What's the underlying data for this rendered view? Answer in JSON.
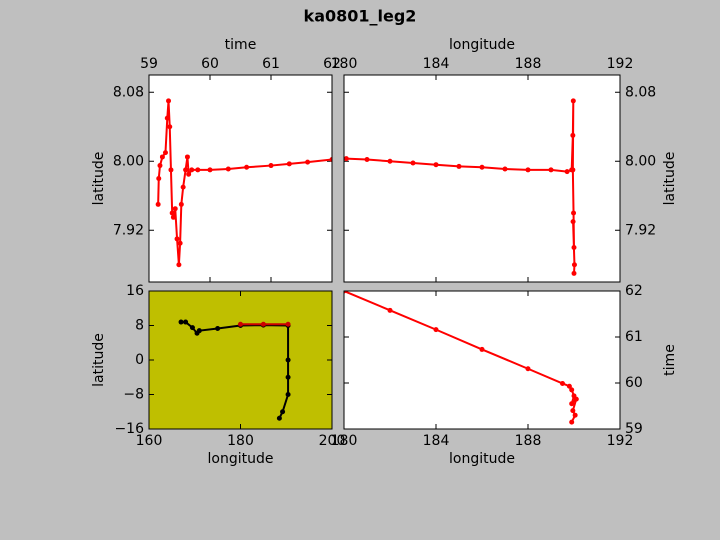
{
  "title": "ka0801_leg2",
  "chart_data": [
    {
      "type": "line",
      "xlabel": "time",
      "ylabel": "latitude",
      "xaxis": "top",
      "yaxis": "left",
      "facecolor": "#ffffff",
      "xlim": [
        59,
        62
      ],
      "xticks": [
        59,
        60,
        61,
        62
      ],
      "ylim": [
        7.86,
        8.1
      ],
      "yticks": [
        7.92,
        {
          "value": 8,
          "label": "8.00"
        },
        8.08
      ],
      "series": [
        {
          "color": "#ff0000",
          "x": [
            59.15,
            59.16,
            59.18,
            59.22,
            59.27,
            59.3,
            59.32,
            59.34,
            59.36,
            59.38,
            59.4,
            59.43,
            59.46,
            59.49,
            59.51,
            59.53,
            59.56,
            59.6,
            59.63,
            59.65,
            59.7,
            59.8,
            60.0,
            60.3,
            60.6,
            61.0,
            61.3,
            61.6,
            62.0
          ],
          "values": [
            7.95,
            7.98,
            7.995,
            8.005,
            8.01,
            8.05,
            8.07,
            8.04,
            7.99,
            7.94,
            7.935,
            7.945,
            7.91,
            7.88,
            7.905,
            7.95,
            7.97,
            7.99,
            8.005,
            7.985,
            7.99,
            7.99,
            7.99,
            7.991,
            7.993,
            7.995,
            7.997,
            7.999,
            8.002
          ]
        }
      ]
    },
    {
      "type": "line",
      "xlabel": "longitude",
      "ylabel": "latitude",
      "xaxis": "top",
      "yaxis": "right",
      "facecolor": "#ffffff",
      "xlim": [
        180,
        192
      ],
      "xticks": [
        180,
        184,
        188,
        192
      ],
      "ylim": [
        7.86,
        8.1
      ],
      "yticks": [
        7.92,
        {
          "value": 8,
          "label": "8.00"
        },
        8.08
      ],
      "series": [
        {
          "color": "#ff0000",
          "x": [
            180.1,
            181,
            182,
            183,
            184,
            185,
            186,
            187,
            188,
            189,
            189.7,
            189.9,
            189.95,
            189.97,
            189.95,
            189.98,
            190.0,
            189.96,
            190.02,
            190.0
          ],
          "values": [
            8.003,
            8.002,
            8.0,
            7.998,
            7.996,
            7.994,
            7.993,
            7.991,
            7.99,
            7.99,
            7.988,
            7.99,
            8.03,
            8.07,
            7.99,
            7.94,
            7.9,
            7.93,
            7.88,
            7.87
          ]
        }
      ]
    },
    {
      "type": "line",
      "xlabel": "longitude",
      "ylabel": "latitude",
      "xaxis": "bottom",
      "yaxis": "left",
      "facecolor": "#bfbf00",
      "xlim": [
        160,
        200
      ],
      "xticks": [
        160,
        180,
        200
      ],
      "ylim": [
        -16,
        16
      ],
      "yticks": [
        {
          "value": -16,
          "label": "−16"
        },
        {
          "value": -8,
          "label": "−8"
        },
        0,
        8,
        16
      ],
      "series": [
        {
          "color": "#000000",
          "x": [
            167,
            168,
            169.5,
            170.5,
            171,
            175,
            180,
            185,
            190.4,
            190.4,
            190.4,
            190.4,
            189.2,
            188.5
          ],
          "values": [
            8.8,
            8.8,
            7.5,
            6.2,
            6.8,
            7.3,
            8,
            8.1,
            8,
            0,
            -4,
            -8,
            -12,
            -13.5
          ]
        },
        {
          "color": "#cc0000",
          "x": [
            180,
            185,
            190.4
          ],
          "values": [
            8.3,
            8.3,
            8.3
          ]
        }
      ]
    },
    {
      "type": "line",
      "xlabel": "longitude",
      "ylabel": "time",
      "xaxis": "bottom",
      "yaxis": "right",
      "facecolor": "#ffffff",
      "xlim": [
        180,
        192
      ],
      "xticks": [
        180,
        184,
        188,
        192
      ],
      "ylim": [
        59,
        62
      ],
      "yticks": [
        59,
        60,
        61,
        62
      ],
      "series": [
        {
          "color": "#ff0000",
          "x": [
            180,
            182,
            184,
            186,
            188,
            189.5,
            189.8,
            189.9,
            190.0,
            189.9,
            190.1,
            189.95,
            190.05,
            189.9
          ],
          "values": [
            62,
            61.58,
            61.16,
            60.73,
            60.31,
            59.99,
            59.93,
            59.85,
            59.72,
            59.55,
            59.65,
            59.4,
            59.3,
            59.15
          ]
        }
      ]
    }
  ]
}
